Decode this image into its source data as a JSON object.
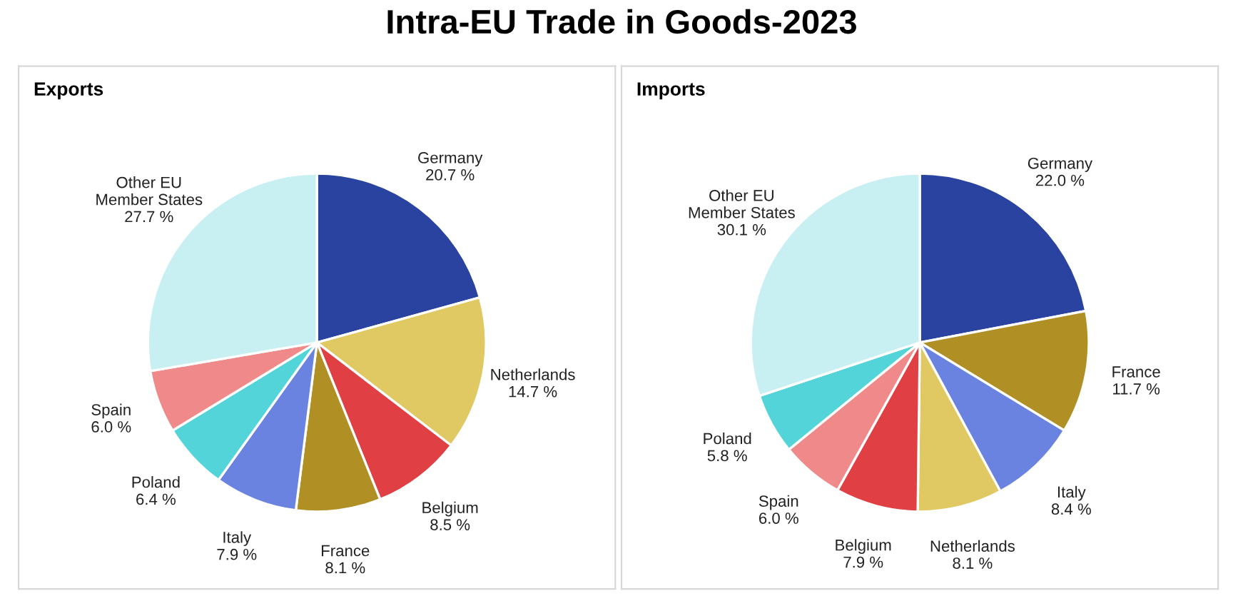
{
  "chart_data": [
    {
      "type": "pie",
      "title": "Exports",
      "annotations": [
        "Intra-EU Trade in Goods-2023"
      ],
      "categories": [
        "Germany",
        "Netherlands",
        "Belgium",
        "France",
        "Italy",
        "Poland",
        "Spain",
        "Other EU\nMember States"
      ],
      "values": [
        20.7,
        14.7,
        8.5,
        8.1,
        7.9,
        6.4,
        6.0,
        27.7
      ],
      "value_labels": [
        "20.7 %",
        "14.7 %",
        "8.5 %",
        "8.1 %",
        "7.9 %",
        "6.4 %",
        "6.0 %",
        "27.7 %"
      ],
      "colors": [
        "#2a43a0",
        "#e0c862",
        "#e04044",
        "#b09024",
        "#6a82e0",
        "#52d4d8",
        "#f08a8a",
        "#c8f0f2"
      ]
    },
    {
      "type": "pie",
      "title": "Imports",
      "categories": [
        "Germany",
        "France",
        "Italy",
        "Netherlands",
        "Belgium",
        "Spain",
        "Poland",
        "Other EU\nMember States"
      ],
      "values": [
        22.0,
        11.7,
        8.4,
        8.1,
        7.9,
        6.0,
        5.8,
        30.1
      ],
      "value_labels": [
        "22.0 %",
        "11.7 %",
        "8.4 %",
        "8.1 %",
        "7.9 %",
        "6.0 %",
        "5.8 %",
        "30.1 %"
      ],
      "colors": [
        "#2a43a0",
        "#b09024",
        "#6a82e0",
        "#e0c862",
        "#e04044",
        "#f08a8a",
        "#52d4d8",
        "#c8f0f2"
      ]
    }
  ]
}
